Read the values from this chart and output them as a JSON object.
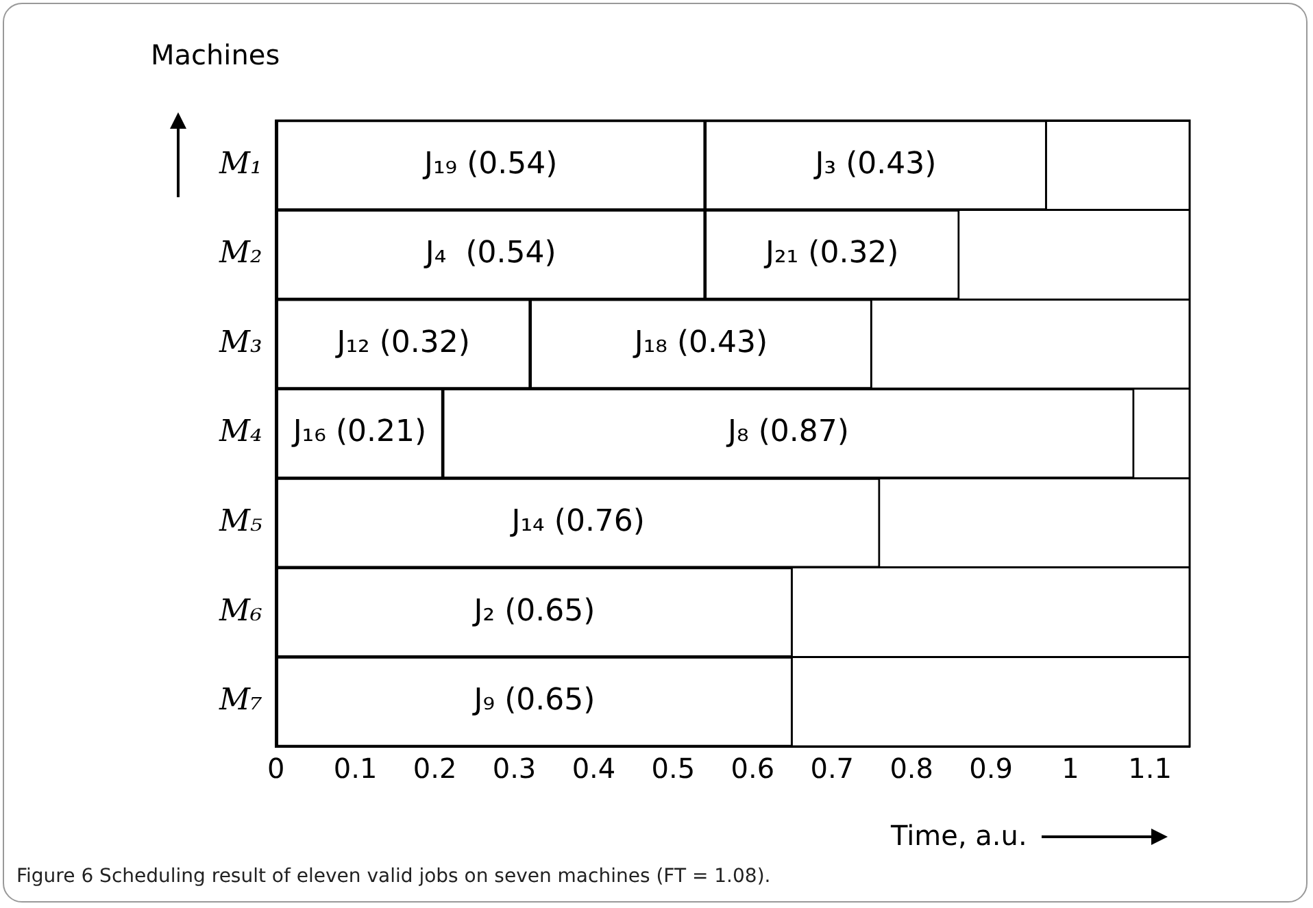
{
  "chart_data": {
    "type": "bar",
    "orientation": "horizontal",
    "stacked": true,
    "categories": [
      "M₁",
      "M₂",
      "M₃",
      "M₄",
      "M₅",
      "M₆",
      "M₇"
    ],
    "series": [
      {
        "color": "#ffffff",
        "values": [
          0.54,
          0.54,
          0.32,
          0.21,
          0.76,
          0.65,
          0.65
        ],
        "value_labels": [
          "J₁₉ (0.54)",
          "J₄  (0.54)",
          "J₁₂ (0.32)",
          "J₁₆ (0.21)",
          "J₁₄ (0.76)",
          "J₂ (0.65)",
          "J₉ (0.65)"
        ]
      },
      {
        "color": "#ffffff",
        "values": [
          0.43,
          0.32,
          0.43,
          0.87,
          null,
          null,
          null
        ],
        "value_labels": [
          "J₃ (0.43)",
          "J₂₁ (0.32)",
          "J₁₈ (0.43)",
          "J₈ (0.87)",
          null,
          null,
          null
        ]
      }
    ],
    "xlim": [
      0,
      1.15
    ],
    "xticks": [
      0,
      0.1,
      0.2,
      0.3,
      0.4,
      0.5,
      0.6,
      0.7,
      0.8,
      0.9,
      1,
      1.1
    ],
    "xlabel": "Time, a.u.",
    "ylabel": "Machines",
    "grid": "y",
    "legend": false,
    "annotations": [
      "Figure 6 Scheduling result of eleven valid jobs on seven machines (FT = 1.08)."
    ]
  }
}
